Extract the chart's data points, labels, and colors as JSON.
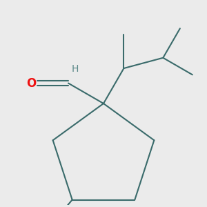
{
  "bg_color": "#ebebeb",
  "bond_color": "#3a6b6b",
  "o_color": "#ee1111",
  "h_color": "#5a8888",
  "line_width": 1.5,
  "font_size_H": 10,
  "font_size_O": 12,
  "figsize": [
    3.0,
    3.0
  ],
  "dpi": 100
}
